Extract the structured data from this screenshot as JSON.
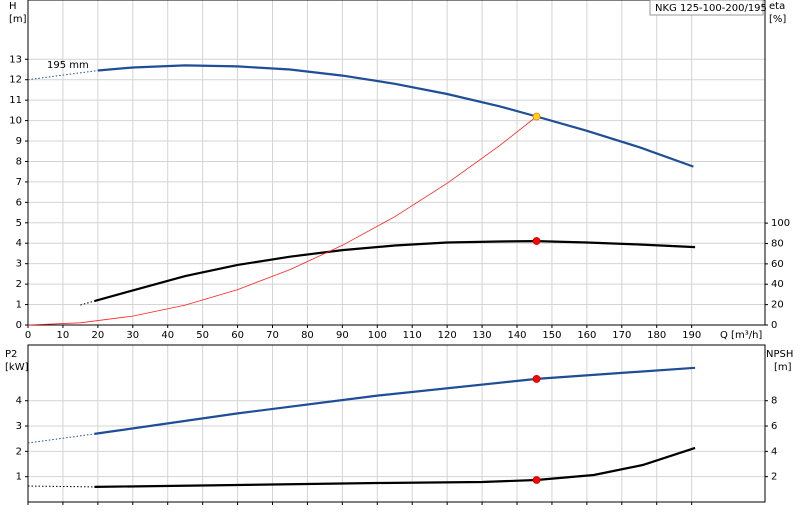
{
  "chart_data": [
    {
      "type": "line",
      "y_label": "H",
      "y_unit": "[m]",
      "y2_label": "eta",
      "y2_unit": "[%]",
      "x_label": "Q [m³/h]",
      "legend_label": "NKG 125-100-200/195",
      "annotation": "195 mm",
      "xlim": [
        0,
        211
      ],
      "ylim": [
        0,
        15.9
      ],
      "y2lim": [
        0,
        319
      ],
      "xticks": [
        0,
        10,
        20,
        30,
        40,
        50,
        60,
        70,
        80,
        90,
        100,
        110,
        120,
        130,
        140,
        150,
        160,
        170,
        180,
        190
      ],
      "yticks": [
        0,
        1,
        2,
        3,
        4,
        5,
        6,
        7,
        8,
        9,
        10,
        11,
        12,
        13
      ],
      "y2ticks": [
        0,
        20,
        40,
        60,
        80,
        100
      ],
      "xtick_labels": true,
      "grid": true,
      "series": [
        {
          "axis": "y",
          "style": "dotted",
          "color": "#1f4e96",
          "x": [
            0,
            20
          ],
          "values": [
            12.0,
            12.45
          ]
        },
        {
          "axis": "y",
          "style": "solid",
          "color": "#1f4e96",
          "x": [
            20,
            30,
            45,
            60,
            75,
            90,
            105,
            120,
            135,
            145.6,
            160,
            175,
            190.5
          ],
          "values": [
            12.45,
            12.6,
            12.7,
            12.65,
            12.5,
            12.2,
            11.8,
            11.3,
            10.7,
            10.2,
            9.5,
            8.7,
            7.75
          ]
        },
        {
          "axis": "y2",
          "style": "dotted",
          "color": "#000000",
          "x": [
            15,
            19
          ],
          "values": [
            19.6,
            23.5
          ]
        },
        {
          "axis": "y2",
          "style": "solid",
          "color": "#000000",
          "x": [
            19,
            30,
            45,
            60,
            75,
            90,
            105,
            120,
            135,
            145.6,
            160,
            175,
            191
          ],
          "values": [
            23.5,
            34,
            48,
            59,
            67,
            73.5,
            78,
            81,
            82,
            82.4,
            81,
            79,
            76.5
          ]
        },
        {
          "axis": "y",
          "style": "thin",
          "color": "#ff2020",
          "x": [
            0,
            15,
            30,
            45,
            60,
            75,
            90,
            105,
            120,
            135,
            145.6
          ],
          "values": [
            0,
            0.108,
            0.433,
            0.974,
            1.73,
            2.71,
            3.9,
            5.3,
            6.93,
            8.77,
            10.2
          ]
        },
        {
          "axis": "y",
          "style": "marker",
          "color": "#ffd21f",
          "x": [
            145.6
          ],
          "values": [
            10.2
          ]
        },
        {
          "axis": "y2",
          "style": "marker",
          "color": "#ff0000",
          "x": [
            145.6
          ],
          "values": [
            82.4
          ]
        }
      ]
    },
    {
      "type": "line",
      "y_label": "P2",
      "y_unit": "[kW]",
      "y2_label": "NPSH",
      "y2_unit": "[m]",
      "xlim": [
        0,
        211
      ],
      "ylim": [
        0,
        6.2
      ],
      "y2lim": [
        0,
        12.4
      ],
      "xticks": [
        0,
        10,
        20,
        30,
        40,
        50,
        60,
        70,
        80,
        90,
        100,
        110,
        120,
        130,
        140,
        150,
        160,
        170,
        180,
        190
      ],
      "yticks": [
        1,
        2,
        3,
        4
      ],
      "y2ticks": [
        2,
        4,
        6,
        8
      ],
      "xtick_labels": false,
      "grid": true,
      "series": [
        {
          "axis": "y",
          "style": "dotted",
          "color": "#1f4e96",
          "x": [
            0,
            19
          ],
          "values": [
            2.33,
            2.69
          ]
        },
        {
          "axis": "y",
          "style": "solid",
          "color": "#1f4e96",
          "x": [
            19,
            60,
            100,
            145.6,
            170,
            191
          ],
          "values": [
            2.69,
            3.5,
            4.2,
            4.86,
            5.1,
            5.3
          ]
        },
        {
          "axis": "y2",
          "style": "dotted",
          "color": "#000000",
          "x": [
            0,
            19
          ],
          "values": [
            1.26,
            1.19
          ]
        },
        {
          "axis": "y2",
          "style": "solid",
          "color": "#000000",
          "x": [
            19,
            60,
            100,
            130,
            145.6,
            162,
            176,
            191
          ],
          "values": [
            1.19,
            1.34,
            1.5,
            1.58,
            1.74,
            2.13,
            2.92,
            4.27
          ]
        },
        {
          "axis": "y",
          "style": "marker",
          "color": "#ff0000",
          "x": [
            145.6
          ],
          "values": [
            4.86
          ]
        },
        {
          "axis": "y2",
          "style": "marker",
          "color": "#ff0000",
          "x": [
            145.6
          ],
          "values": [
            1.74
          ]
        }
      ]
    }
  ]
}
